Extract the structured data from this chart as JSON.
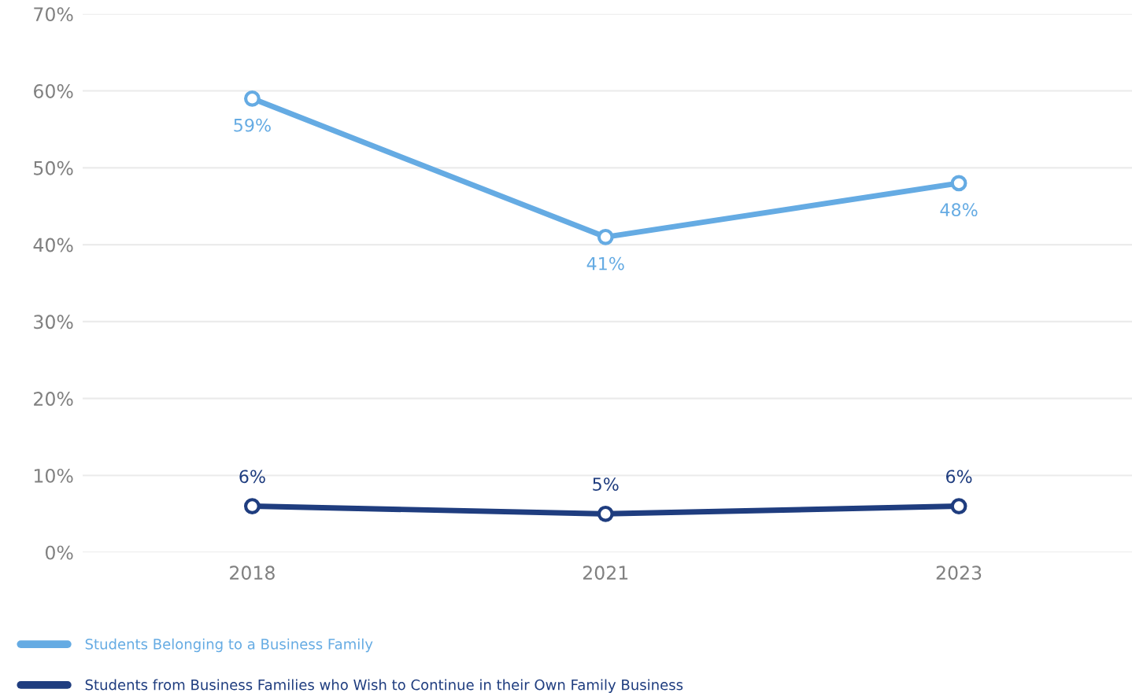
{
  "chart_data": {
    "type": "line",
    "categories": [
      "2018",
      "2021",
      "2023"
    ],
    "series": [
      {
        "name": "Students Belonging to a Business Family",
        "color": "#65abe3",
        "values": [
          59,
          41,
          48
        ],
        "value_labels": [
          "59%",
          "41%",
          "48%"
        ]
      },
      {
        "name": "Students from Business Families who Wish to Continue in their Own Family Business",
        "color": "#1f3d7f",
        "values": [
          6,
          5,
          6
        ],
        "value_labels": [
          "6%",
          "5%",
          "6%"
        ]
      }
    ],
    "ylim": [
      0,
      70
    ],
    "yticks": [
      {
        "value": 0,
        "label": "0%"
      },
      {
        "value": 10,
        "label": "10%"
      },
      {
        "value": 20,
        "label": "20%"
      },
      {
        "value": 30,
        "label": "30%"
      },
      {
        "value": 40,
        "label": "40%"
      },
      {
        "value": 50,
        "label": "50%"
      },
      {
        "value": 60,
        "label": "60%"
      },
      {
        "value": 70,
        "label": "70%"
      }
    ],
    "grid": "y",
    "legend": "bottom left",
    "marker": "circle",
    "line_style": "solid"
  }
}
